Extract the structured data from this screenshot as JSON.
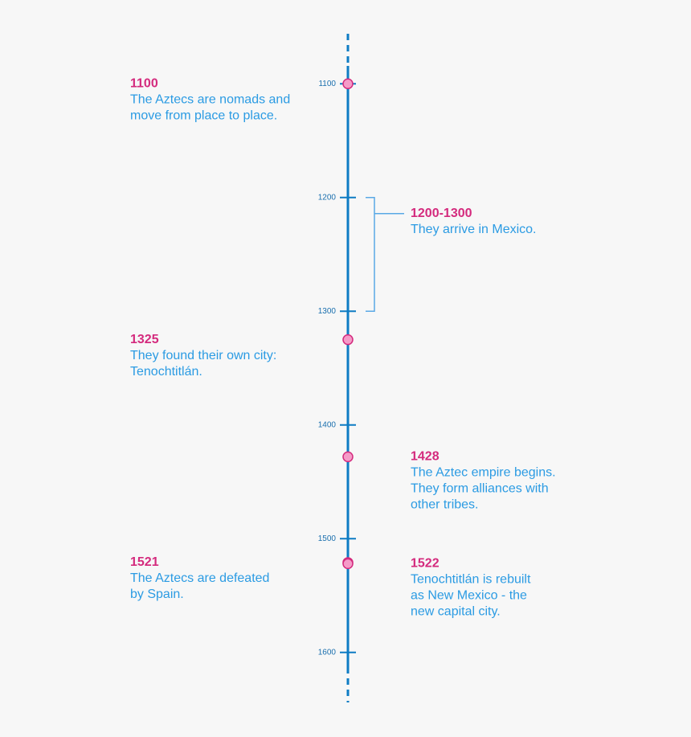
{
  "chart_data": {
    "type": "timeline",
    "ylim": [
      1056,
      1644
    ],
    "yticks": [
      1100,
      1200,
      1300,
      1400,
      1500,
      1600
    ],
    "color": "#0e7cc4",
    "events": [
      {
        "value": 1100,
        "side": "left",
        "lines": [
          "The Aztecs are nomads and",
          "move from place to place."
        ]
      },
      {
        "value": 1325,
        "side": "left",
        "lines": [
          "They found their own city:",
          "Tenochtitlán."
        ]
      },
      {
        "value": 1428,
        "side": "right",
        "lines": [
          "The Aztec empire begins.",
          "They form alliances with",
          "other tribes."
        ]
      },
      {
        "value": 1521,
        "side": "left",
        "lines": [
          "The Aztecs are defeated",
          "by Spain."
        ]
      },
      {
        "value": 1522,
        "side": "right",
        "lines": [
          "Tenochtitlán is rebuilt",
          "as New Mexico - the",
          "new capital city."
        ]
      }
    ],
    "ranges": [
      {
        "start": 1200,
        "end": 1300,
        "label": "1200-1300",
        "side": "right",
        "lines": [
          "They arrive in Mexico."
        ]
      }
    ]
  }
}
